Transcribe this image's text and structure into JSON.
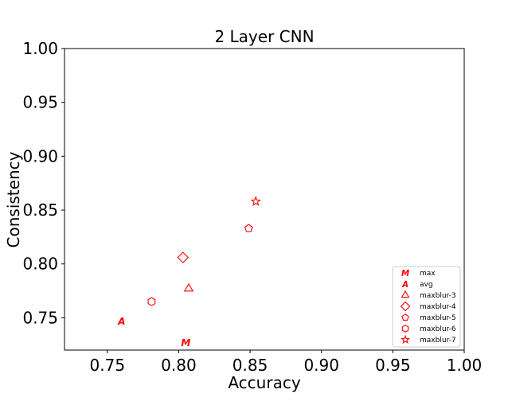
{
  "chart_data": {
    "type": "scatter",
    "title": "2 Layer CNN",
    "xlabel": "Accuracy",
    "ylabel": "Consistency",
    "xlim": [
      0.72,
      1.0
    ],
    "ylim": [
      0.72,
      1.0
    ],
    "xticks": [
      "0.75",
      "0.80",
      "0.85",
      "0.90",
      "0.95",
      "1.00"
    ],
    "yticks": [
      "0.75",
      "0.80",
      "0.85",
      "0.90",
      "0.95",
      "1.00"
    ],
    "grid": false,
    "legend_position": "lower-right",
    "color": "#ff0000",
    "series": [
      {
        "name": "max",
        "marker": "M",
        "x": 0.805,
        "y": 0.727
      },
      {
        "name": "avg",
        "marker": "A",
        "x": 0.76,
        "y": 0.747
      },
      {
        "name": "maxblur-3",
        "marker": "triangle",
        "x": 0.807,
        "y": 0.777
      },
      {
        "name": "maxblur-4",
        "marker": "diamond",
        "x": 0.803,
        "y": 0.806
      },
      {
        "name": "maxblur-5",
        "marker": "pentagon",
        "x": 0.849,
        "y": 0.833
      },
      {
        "name": "maxblur-6",
        "marker": "hexagon",
        "x": 0.781,
        "y": 0.765
      },
      {
        "name": "maxblur-7",
        "marker": "star",
        "x": 0.854,
        "y": 0.858
      }
    ]
  }
}
